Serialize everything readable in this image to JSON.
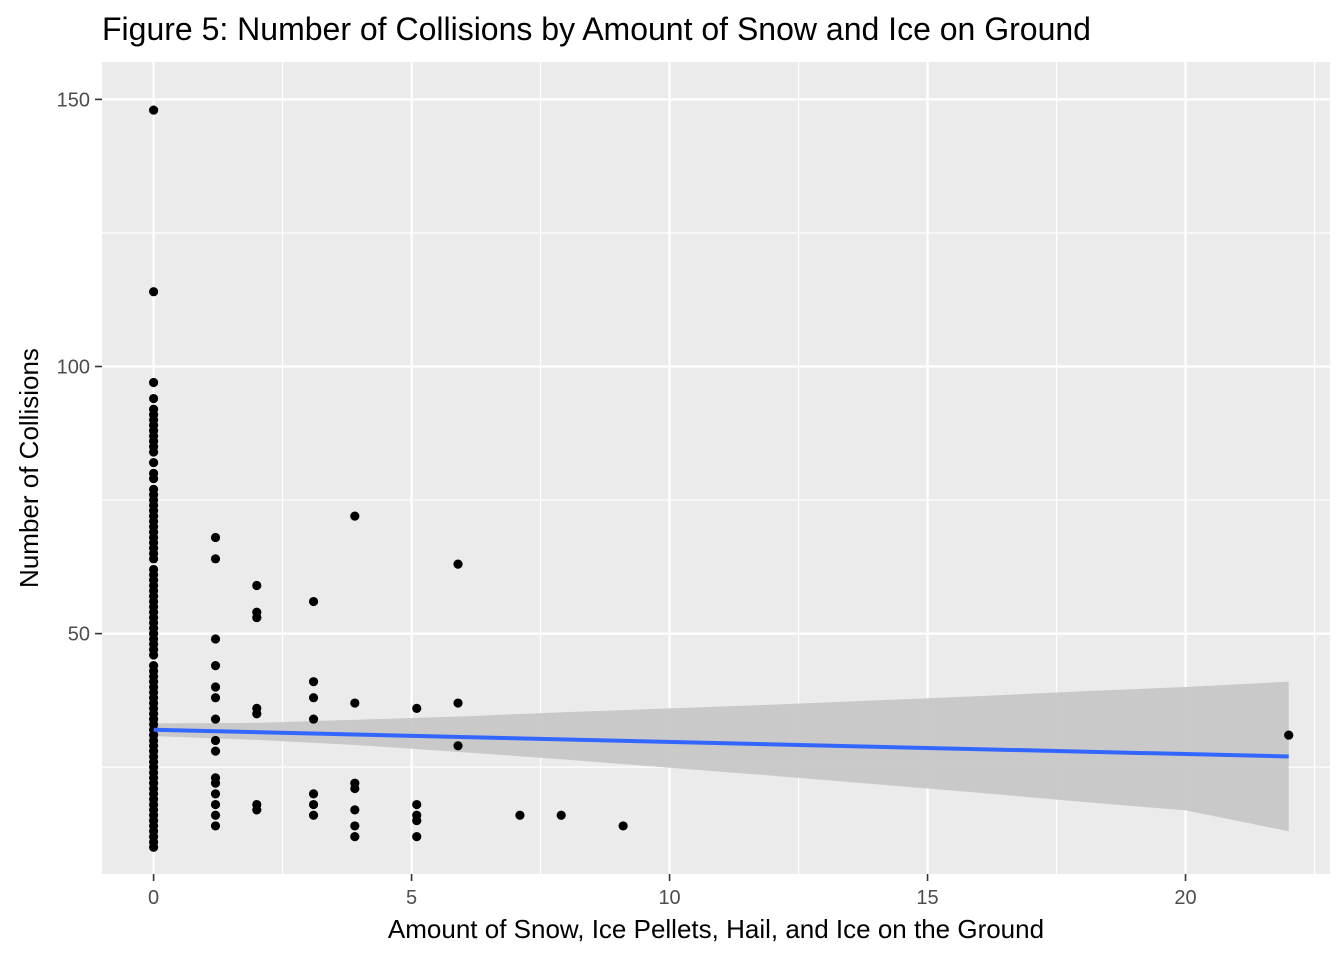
{
  "chart_data": {
    "type": "scatter",
    "title": "Figure 5: Number of Collisions by Amount of Snow and Ice on Ground",
    "xlabel": "Amount of Snow, Ice Pellets, Hail, and Ice on the Ground",
    "ylabel": "Number of Collisions",
    "xlim": [
      -1.0,
      22.8
    ],
    "ylim": [
      5.0,
      157.0
    ],
    "x_ticks": [
      0,
      5,
      10,
      15,
      20
    ],
    "x_tick_labels": [
      "0",
      "5",
      "10",
      "15",
      "20"
    ],
    "y_ticks": [
      50,
      100,
      150
    ],
    "y_tick_labels": [
      "50",
      "100",
      "150"
    ],
    "grid": true,
    "legend": "none",
    "colors": {
      "panel": "#ebebeb",
      "grid": "#ffffff",
      "points": "#000000",
      "fit_line": "#3366ff",
      "confidence_band": "#c7c7c7"
    },
    "points": [
      [
        0,
        148
      ],
      [
        0,
        114
      ],
      [
        0,
        97
      ],
      [
        0,
        94
      ],
      [
        0,
        92
      ],
      [
        0,
        91
      ],
      [
        0,
        90
      ],
      [
        0,
        89
      ],
      [
        0,
        88
      ],
      [
        0,
        87
      ],
      [
        0,
        86
      ],
      [
        0,
        85
      ],
      [
        0,
        84
      ],
      [
        0,
        82
      ],
      [
        0,
        80
      ],
      [
        0,
        79
      ],
      [
        0,
        77
      ],
      [
        0,
        76
      ],
      [
        0,
        75
      ],
      [
        0,
        74
      ],
      [
        0,
        73
      ],
      [
        0,
        72
      ],
      [
        0,
        71
      ],
      [
        0,
        70
      ],
      [
        0,
        69
      ],
      [
        0,
        68
      ],
      [
        0,
        67
      ],
      [
        0,
        66
      ],
      [
        0,
        65
      ],
      [
        0,
        64
      ],
      [
        0,
        62
      ],
      [
        0,
        61
      ],
      [
        0,
        60
      ],
      [
        0,
        59
      ],
      [
        0,
        58
      ],
      [
        0,
        57
      ],
      [
        0,
        56
      ],
      [
        0,
        55
      ],
      [
        0,
        54
      ],
      [
        0,
        53
      ],
      [
        0,
        52
      ],
      [
        0,
        51
      ],
      [
        0,
        50
      ],
      [
        0,
        49
      ],
      [
        0,
        48
      ],
      [
        0,
        47
      ],
      [
        0,
        46
      ],
      [
        0,
        44
      ],
      [
        0,
        43
      ],
      [
        0,
        42
      ],
      [
        0,
        41
      ],
      [
        0,
        40
      ],
      [
        0,
        39
      ],
      [
        0,
        38
      ],
      [
        0,
        37
      ],
      [
        0,
        36
      ],
      [
        0,
        35
      ],
      [
        0,
        34
      ],
      [
        0,
        33
      ],
      [
        0,
        32
      ],
      [
        0,
        31
      ],
      [
        0,
        30
      ],
      [
        0,
        29
      ],
      [
        0,
        28
      ],
      [
        0,
        27
      ],
      [
        0,
        26
      ],
      [
        0,
        25
      ],
      [
        0,
        24
      ],
      [
        0,
        23
      ],
      [
        0,
        22
      ],
      [
        0,
        21
      ],
      [
        0,
        20
      ],
      [
        0,
        19
      ],
      [
        0,
        18
      ],
      [
        0,
        17
      ],
      [
        0,
        16
      ],
      [
        0,
        15
      ],
      [
        0,
        14
      ],
      [
        0,
        13
      ],
      [
        0,
        12
      ],
      [
        0,
        11
      ],
      [
        0,
        10
      ],
      [
        1.2,
        68
      ],
      [
        1.2,
        64
      ],
      [
        1.2,
        49
      ],
      [
        1.2,
        44
      ],
      [
        1.2,
        40
      ],
      [
        1.2,
        38
      ],
      [
        1.2,
        34
      ],
      [
        1.2,
        30
      ],
      [
        1.2,
        28
      ],
      [
        1.2,
        23
      ],
      [
        1.2,
        22
      ],
      [
        1.2,
        20
      ],
      [
        1.2,
        18
      ],
      [
        1.2,
        16
      ],
      [
        1.2,
        14
      ],
      [
        2.0,
        59
      ],
      [
        2.0,
        54
      ],
      [
        2.0,
        53
      ],
      [
        2.0,
        36
      ],
      [
        2.0,
        35
      ],
      [
        2.0,
        18
      ],
      [
        2.0,
        17
      ],
      [
        3.1,
        56
      ],
      [
        3.1,
        41
      ],
      [
        3.1,
        38
      ],
      [
        3.1,
        34
      ],
      [
        3.1,
        20
      ],
      [
        3.1,
        18
      ],
      [
        3.1,
        16
      ],
      [
        3.9,
        72
      ],
      [
        3.9,
        37
      ],
      [
        3.9,
        22
      ],
      [
        3.9,
        21
      ],
      [
        3.9,
        17
      ],
      [
        3.9,
        14
      ],
      [
        3.9,
        12
      ],
      [
        5.1,
        36
      ],
      [
        5.1,
        18
      ],
      [
        5.1,
        16
      ],
      [
        5.1,
        15
      ],
      [
        5.1,
        12
      ],
      [
        5.9,
        63
      ],
      [
        5.9,
        37
      ],
      [
        5.9,
        29
      ],
      [
        7.1,
        16
      ],
      [
        7.9,
        16
      ],
      [
        9.1,
        14
      ],
      [
        22.0,
        31
      ]
    ],
    "fit_line": {
      "x": [
        0,
        22.0
      ],
      "y": [
        32.0,
        27.0
      ]
    },
    "confidence_band": {
      "x": [
        0,
        2,
        4,
        6,
        8,
        10,
        12,
        14,
        16,
        18,
        20,
        22.0
      ],
      "lower": [
        30.8,
        30.1,
        29.1,
        27.8,
        26.4,
        24.9,
        23.4,
        21.8,
        20.2,
        18.5,
        16.9,
        13.0
      ],
      "upper": [
        33.2,
        33.3,
        33.9,
        34.5,
        35.3,
        36.0,
        36.7,
        37.5,
        38.3,
        39.2,
        40.0,
        41.0
      ]
    }
  }
}
